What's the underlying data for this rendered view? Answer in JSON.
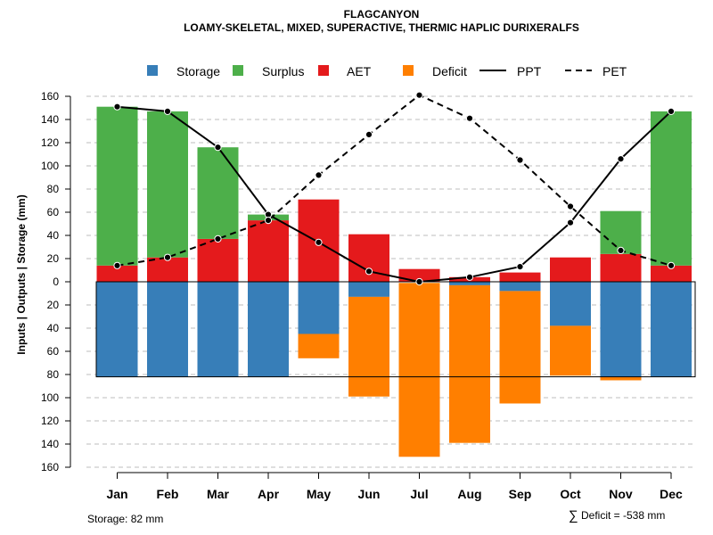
{
  "chart_data": {
    "type": "bar",
    "title": "FLAGCANYON",
    "subtitle": "LOAMY-SKELETAL, MIXED, SUPERACTIVE, THERMIC HAPLIC DURIXERALFS",
    "ylabel": "Inputs | Outputs | Storage    (mm)",
    "ylim": [
      -160,
      160
    ],
    "y_ticks": [
      160,
      140,
      120,
      100,
      80,
      60,
      40,
      20,
      0,
      -20,
      -40,
      -60,
      -80,
      -100,
      -120,
      -140,
      -160
    ],
    "y_tick_labels": [
      "160",
      "140",
      "120",
      "100",
      "80",
      "60",
      "40",
      "20",
      "0",
      "20",
      "40",
      "60",
      "80",
      "100",
      "120",
      "140",
      "160"
    ],
    "grid": true,
    "legend_position": "top",
    "categories": [
      "Jan",
      "Feb",
      "Mar",
      "Apr",
      "May",
      "Jun",
      "Jul",
      "Aug",
      "Sep",
      "Oct",
      "Nov",
      "Dec"
    ],
    "storage_capacity": 82,
    "series": [
      {
        "name": "AET",
        "kind": "bar-positive",
        "color": "#E41A1C",
        "values": [
          14,
          21,
          37,
          53,
          71,
          41,
          11,
          4,
          8,
          21,
          24,
          14
        ]
      },
      {
        "name": "Surplus",
        "kind": "bar-positive-stacked",
        "color": "#4DAF4A",
        "values": [
          137,
          126,
          79,
          5,
          0,
          0,
          0,
          0,
          0,
          0,
          37,
          133
        ]
      },
      {
        "name": "Storage",
        "kind": "bar-negative",
        "color": "#377EB8",
        "values": [
          82,
          82,
          82,
          82,
          45,
          13,
          0,
          3,
          8,
          38,
          82,
          82
        ]
      },
      {
        "name": "Deficit",
        "kind": "bar-negative",
        "color": "#FF7F00",
        "start": [
          0,
          0,
          0,
          0,
          45,
          13,
          1,
          3,
          8,
          38,
          82,
          0
        ],
        "end": [
          0,
          0,
          0,
          0,
          66,
          99,
          151,
          139,
          105,
          81,
          85,
          0
        ]
      },
      {
        "name": "PPT",
        "kind": "line",
        "dash": "solid",
        "color": "#000000",
        "values": [
          151,
          147,
          116,
          58,
          34,
          9,
          0,
          4,
          13,
          51,
          106,
          147
        ]
      },
      {
        "name": "PET",
        "kind": "line",
        "dash": "dashed",
        "color": "#000000",
        "values": [
          14,
          21,
          37,
          53,
          92,
          127,
          161,
          141,
          105,
          65,
          27,
          14
        ]
      }
    ],
    "notes": {
      "storage": "Storage: 82 mm",
      "deficit_symbol": "∑",
      "deficit": "Deficit = -538 mm"
    }
  }
}
